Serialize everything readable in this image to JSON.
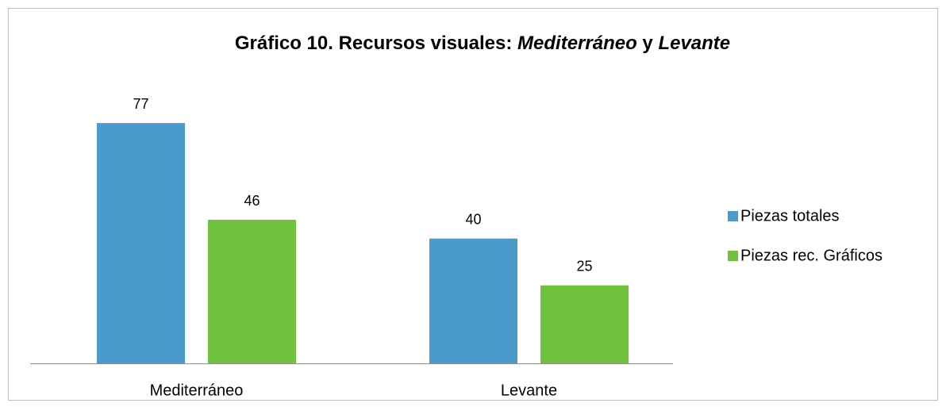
{
  "chart_data": {
    "type": "bar",
    "title": [
      "Gráfico 10. Recursos visuales:",
      "Mediterráneo",
      "y",
      "Levante"
    ],
    "categories": [
      "Mediterráneo",
      "Levante"
    ],
    "series": [
      {
        "name": "Piezas totales",
        "color": "#4a9bcb",
        "values": [
          77,
          40
        ]
      },
      {
        "name": "Piezas rec. Gráficos",
        "color": "#70c13b",
        "values": [
          46,
          25
        ]
      }
    ],
    "ylim": [
      0,
      90
    ],
    "legend": "right"
  }
}
